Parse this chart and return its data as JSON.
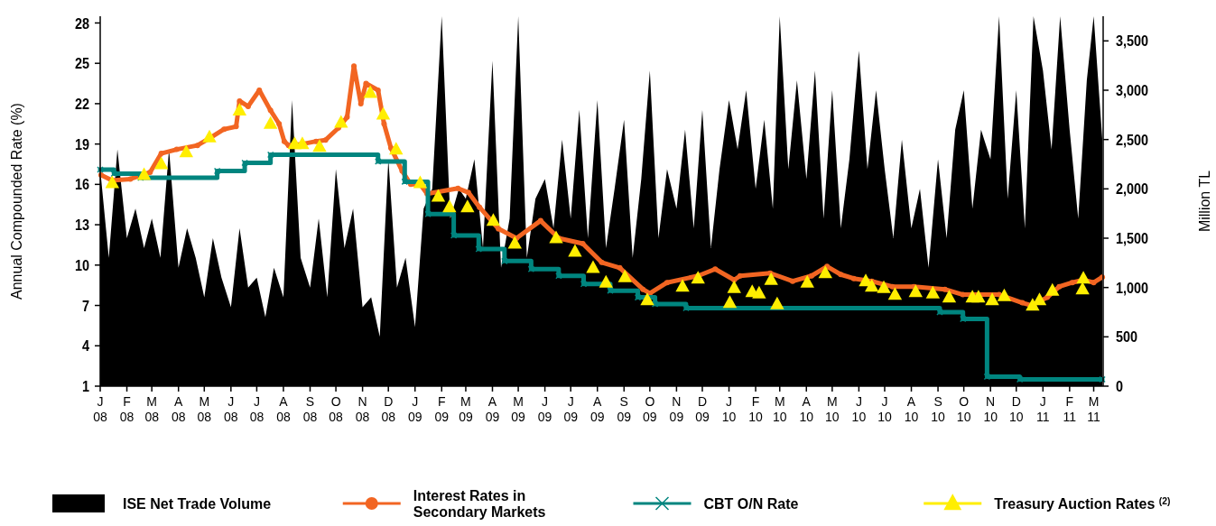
{
  "chart_data": {
    "type": "line",
    "ylabel": "Annual Compounded Rate (%)",
    "y2label": "Million TL",
    "ylim": [
      1,
      28.5
    ],
    "yticks": [
      1,
      4,
      7,
      10,
      13,
      16,
      19,
      22,
      25,
      28
    ],
    "y2lim": [
      0,
      3750
    ],
    "y2ticks": [
      0,
      500,
      {
        "value": 1000,
        "label": "1,000"
      },
      {
        "value": 1500,
        "label": "1,500"
      },
      {
        "value": 2000,
        "label": "2,000"
      },
      {
        "value": 2500,
        "label": "2,500"
      },
      {
        "value": 3000,
        "label": "3,000"
      },
      {
        "value": 3500,
        "label": "3,500"
      }
    ],
    "xlim": [
      "2008-01-01",
      "2011-03-12"
    ],
    "xticks": [
      {
        "value": "2008-01-01",
        "label": "J\n08"
      },
      {
        "value": "2008-02-01",
        "label": "F\n08"
      },
      {
        "value": "2008-03-01",
        "label": "M\n08"
      },
      {
        "value": "2008-04-01",
        "label": "A\n08"
      },
      {
        "value": "2008-05-01",
        "label": "M\n08"
      },
      {
        "value": "2008-06-01",
        "label": "J\n08"
      },
      {
        "value": "2008-07-01",
        "label": "J\n08"
      },
      {
        "value": "2008-08-01",
        "label": "A\n08"
      },
      {
        "value": "2008-09-01",
        "label": "S\n08"
      },
      {
        "value": "2008-10-01",
        "label": "O\n08"
      },
      {
        "value": "2008-11-01",
        "label": "N\n08"
      },
      {
        "value": "2008-12-01",
        "label": "D\n08"
      },
      {
        "value": "2009-01-01",
        "label": "J\n09"
      },
      {
        "value": "2009-02-01",
        "label": "F\n09"
      },
      {
        "value": "2009-03-01",
        "label": "M\n09"
      },
      {
        "value": "2009-04-01",
        "label": "A\n09"
      },
      {
        "value": "2009-05-01",
        "label": "M\n09"
      },
      {
        "value": "2009-06-01",
        "label": "J\n09"
      },
      {
        "value": "2009-07-01",
        "label": "J\n09"
      },
      {
        "value": "2009-08-01",
        "label": "A\n09"
      },
      {
        "value": "2009-09-01",
        "label": "S\n09"
      },
      {
        "value": "2009-10-01",
        "label": "O\n09"
      },
      {
        "value": "2009-11-01",
        "label": "N\n09"
      },
      {
        "value": "2009-12-01",
        "label": "D\n09"
      },
      {
        "value": "2010-01-01",
        "label": "J\n10"
      },
      {
        "value": "2010-02-01",
        "label": "F\n10"
      },
      {
        "value": "2010-03-01",
        "label": "M\n10"
      },
      {
        "value": "2010-04-01",
        "label": "A\n10"
      },
      {
        "value": "2010-05-01",
        "label": "M\n10"
      },
      {
        "value": "2010-06-01",
        "label": "J\n10"
      },
      {
        "value": "2010-07-01",
        "label": "J\n10"
      },
      {
        "value": "2010-08-01",
        "label": "A\n10"
      },
      {
        "value": "2010-09-01",
        "label": "S\n10"
      },
      {
        "value": "2010-10-01",
        "label": "O\n10"
      },
      {
        "value": "2010-11-01",
        "label": "N\n10"
      },
      {
        "value": "2010-12-01",
        "label": "D\n10"
      },
      {
        "value": "2011-01-01",
        "label": "J\n11"
      },
      {
        "value": "2011-02-01",
        "label": "F\n11"
      },
      {
        "value": "2011-03-01",
        "label": "M\n11"
      }
    ],
    "legend": "bottom",
    "grid": false,
    "series": [
      {
        "name": "ISE Net Trade Volume",
        "type": "area",
        "axis": "y2",
        "color": "#000000",
        "x": [
          "2008-01-01",
          "2008-01-11",
          "2008-01-21",
          "2008-02-01",
          "2008-02-11",
          "2008-02-21",
          "2008-03-01",
          "2008-03-11",
          "2008-03-21",
          "2008-04-01",
          "2008-04-11",
          "2008-04-21",
          "2008-05-01",
          "2008-05-11",
          "2008-05-21",
          "2008-06-01",
          "2008-06-11",
          "2008-06-21",
          "2008-07-01",
          "2008-07-11",
          "2008-07-21",
          "2008-08-01",
          "2008-08-11",
          "2008-08-21",
          "2008-09-01",
          "2008-09-11",
          "2008-09-21",
          "2008-10-01",
          "2008-10-11",
          "2008-10-21",
          "2008-11-01",
          "2008-11-11",
          "2008-11-21",
          "2008-12-01",
          "2008-12-11",
          "2008-12-21",
          "2009-01-01",
          "2009-01-11",
          "2009-01-21",
          "2009-02-01",
          "2009-02-11",
          "2009-02-21",
          "2009-03-01",
          "2009-03-11",
          "2009-03-21",
          "2009-04-01",
          "2009-04-11",
          "2009-04-21",
          "2009-05-01",
          "2009-05-11",
          "2009-05-21",
          "2009-06-01",
          "2009-06-11",
          "2009-06-21",
          "2009-07-01",
          "2009-07-11",
          "2009-07-21",
          "2009-08-01",
          "2009-08-11",
          "2009-08-21",
          "2009-09-01",
          "2009-09-11",
          "2009-09-21",
          "2009-10-01",
          "2009-10-11",
          "2009-10-21",
          "2009-11-01",
          "2009-11-11",
          "2009-11-21",
          "2009-12-01",
          "2009-12-11",
          "2009-12-21",
          "2010-01-01",
          "2010-01-11",
          "2010-01-21",
          "2010-02-01",
          "2010-02-11",
          "2010-02-21",
          "2010-03-01",
          "2010-03-11",
          "2010-03-21",
          "2010-04-01",
          "2010-04-11",
          "2010-04-21",
          "2010-05-01",
          "2010-05-11",
          "2010-05-21",
          "2010-06-01",
          "2010-06-11",
          "2010-06-21",
          "2010-07-01",
          "2010-07-11",
          "2010-07-21",
          "2010-08-01",
          "2010-08-11",
          "2010-08-21",
          "2010-09-01",
          "2010-09-11",
          "2010-09-21",
          "2010-10-01",
          "2010-10-11",
          "2010-10-21",
          "2010-11-01",
          "2010-11-11",
          "2010-11-21",
          "2010-12-01",
          "2010-12-11",
          "2010-12-21",
          "2011-01-01",
          "2011-01-11",
          "2011-01-21",
          "2011-02-01",
          "2011-02-11",
          "2011-02-21",
          "2011-03-01",
          "2011-03-11"
        ],
        "values": [
          2200,
          1300,
          2400,
          1500,
          1800,
          1400,
          1700,
          1300,
          2400,
          1200,
          1600,
          1300,
          900,
          1500,
          1100,
          800,
          1600,
          1000,
          1100,
          700,
          1200,
          900,
          2900,
          1300,
          1000,
          1700,
          900,
          2200,
          1400,
          1800,
          800,
          900,
          500,
          2300,
          1000,
          1300,
          600,
          1800,
          2000,
          3750,
          1700,
          2000,
          1900,
          2300,
          1400,
          3300,
          1200,
          1700,
          3750,
          1300,
          1900,
          2100,
          1600,
          2500,
          1700,
          2800,
          1500,
          2900,
          1400,
          2000,
          2700,
          1300,
          2100,
          3200,
          1500,
          2200,
          1800,
          2600,
          1600,
          2800,
          1400,
          2200,
          2900,
          2400,
          3000,
          2000,
          2700,
          1800,
          3750,
          2200,
          3100,
          2100,
          3200,
          1700,
          3000,
          1600,
          2300,
          3400,
          2200,
          3000,
          2200,
          1500,
          2500,
          1600,
          2000,
          1200,
          2300,
          1500,
          2600,
          3000,
          1800,
          2600,
          2300,
          3750,
          1900,
          3000,
          1600,
          3750,
          3200,
          2400,
          3750,
          2600,
          1700,
          3100,
          3750,
          2500
        ]
      },
      {
        "name": "Interest Rates in Secondary Markets",
        "color": "#f26522",
        "marker": "circle",
        "x": [
          "2008-01-02",
          "2008-01-15",
          "2008-02-05",
          "2008-02-28",
          "2008-03-12",
          "2008-03-30",
          "2008-04-23",
          "2008-05-09",
          "2008-05-24",
          "2008-06-07",
          "2008-06-11",
          "2008-06-21",
          "2008-07-04",
          "2008-07-17",
          "2008-07-27",
          "2008-08-02",
          "2008-08-07",
          "2008-08-23",
          "2008-09-08",
          "2008-09-19",
          "2008-10-04",
          "2008-10-14",
          "2008-10-22",
          "2008-10-30",
          "2008-11-05",
          "2008-11-19",
          "2008-11-26",
          "2008-12-04",
          "2008-12-17",
          "2008-12-27",
          "2009-01-07",
          "2009-01-15",
          "2009-02-20",
          "2009-03-04",
          "2009-03-17",
          "2009-04-08",
          "2009-04-29",
          "2009-05-27",
          "2009-06-17",
          "2009-07-15",
          "2009-08-06",
          "2009-08-27",
          "2009-09-23",
          "2009-10-01",
          "2009-10-21",
          "2009-11-26",
          "2009-12-16",
          "2010-01-07",
          "2010-01-14",
          "2010-02-18",
          "2010-03-16",
          "2010-04-07",
          "2010-04-25",
          "2010-05-11",
          "2010-05-26",
          "2010-06-16",
          "2010-07-10",
          "2010-08-04",
          "2010-09-09",
          "2010-09-30",
          "2010-11-11",
          "2010-12-08",
          "2010-12-19",
          "2011-01-06",
          "2011-01-20",
          "2011-02-04",
          "2011-02-17",
          "2011-03-01",
          "2011-03-11"
        ],
        "values": [
          16.7,
          16.3,
          16.4,
          16.9,
          18.3,
          18.6,
          18.9,
          19.5,
          20.1,
          20.3,
          22.2,
          21.8,
          23.0,
          21.5,
          20.5,
          19.2,
          18.9,
          19.0,
          19.2,
          19.3,
          20.2,
          21.0,
          24.8,
          22.0,
          23.5,
          23.0,
          20.5,
          18.7,
          17.0,
          16.0,
          16.0,
          15.3,
          15.7,
          15.4,
          14.3,
          12.7,
          12.0,
          13.3,
          12.0,
          11.6,
          10.2,
          9.8,
          8.2,
          7.9,
          8.7,
          9.2,
          9.7,
          8.9,
          9.2,
          9.4,
          8.8,
          9.2,
          9.9,
          9.3,
          9.0,
          8.8,
          8.4,
          8.4,
          8.2,
          7.8,
          7.8,
          7.2,
          7.0,
          7.6,
          8.4,
          8.7,
          8.9,
          8.7,
          9.1
        ]
      },
      {
        "name": "CBT O/N Rate",
        "type": "step",
        "color": "#00857f",
        "marker": "cross",
        "x": [
          "2008-01-01",
          "2008-01-17",
          "2008-02-17",
          "2008-05-16",
          "2008-06-17",
          "2008-07-17",
          "2008-11-19",
          "2008-12-20",
          "2009-01-16",
          "2009-02-15",
          "2009-03-16",
          "2009-04-15",
          "2009-05-16",
          "2009-06-17",
          "2009-07-16",
          "2009-08-16",
          "2009-09-17",
          "2009-10-07",
          "2009-11-12",
          "2010-09-03",
          "2010-09-30",
          "2010-10-28",
          "2010-12-05",
          "2011-03-11"
        ],
        "values": [
          17.1,
          16.8,
          16.5,
          17.0,
          17.6,
          18.2,
          17.7,
          16.2,
          13.8,
          12.2,
          11.2,
          10.3,
          9.7,
          9.2,
          8.6,
          8.1,
          7.6,
          7.1,
          6.8,
          6.5,
          6.0,
          1.7,
          1.5,
          1.5
        ]
      },
      {
        "name": "Treasury Auction Rates $^{(2)}$",
        "type": "scatter",
        "color": "#ffee00",
        "marker": "triangle",
        "x": [
          "2008-01-15",
          "2008-02-21",
          "2008-03-12",
          "2008-04-10",
          "2008-05-07",
          "2008-06-11",
          "2008-07-17",
          "2008-08-14",
          "2008-08-23",
          "2008-09-12",
          "2008-10-07",
          "2008-11-10",
          "2008-11-25",
          "2008-12-10",
          "2009-01-07",
          "2009-01-28",
          "2009-02-10",
          "2009-03-03",
          "2009-04-02",
          "2009-04-27",
          "2009-06-14",
          "2009-07-06",
          "2009-07-27",
          "2009-08-11",
          "2009-09-02",
          "2009-09-28",
          "2009-11-08",
          "2009-11-26",
          "2010-01-02",
          "2010-01-07",
          "2010-01-28",
          "2010-02-05",
          "2010-02-19",
          "2010-02-26",
          "2010-04-02",
          "2010-04-23",
          "2010-06-09",
          "2010-06-16",
          "2010-06-30",
          "2010-07-13",
          "2010-08-06",
          "2010-08-26",
          "2010-09-14",
          "2010-10-11",
          "2010-10-18",
          "2010-11-03",
          "2010-11-17",
          "2010-12-20",
          "2010-12-28",
          "2011-01-12",
          "2011-02-16",
          "2011-02-17"
        ],
        "values": [
          16.1,
          16.7,
          17.5,
          18.4,
          19.5,
          21.5,
          20.5,
          19.0,
          19.0,
          18.8,
          20.6,
          22.8,
          21.2,
          18.6,
          16.1,
          15.1,
          14.3,
          14.3,
          13.3,
          11.6,
          12.0,
          11.0,
          9.8,
          8.7,
          9.1,
          7.4,
          8.4,
          9.0,
          7.2,
          8.3,
          8.0,
          7.9,
          8.9,
          7.1,
          8.7,
          9.4,
          8.8,
          8.4,
          8.3,
          7.8,
          8.0,
          7.9,
          7.6,
          7.6,
          7.6,
          7.4,
          7.7,
          7.0,
          7.4,
          8.1,
          8.2,
          9.0
        ]
      }
    ]
  }
}
